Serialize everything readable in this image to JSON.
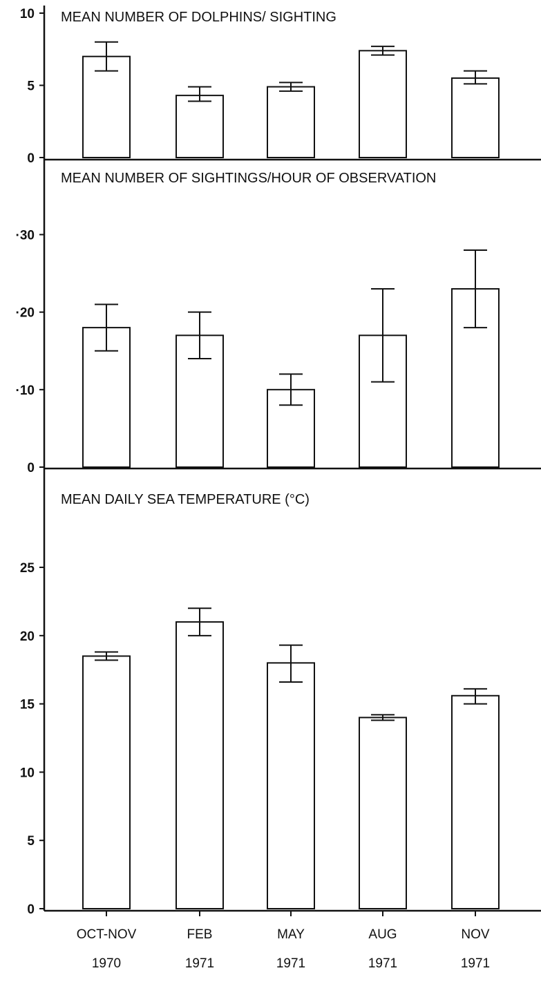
{
  "chart_data": [
    {
      "type": "bar",
      "title": "MEAN NUMBER OF DOLPHINS/ SIGHTING",
      "categories": [
        [
          "OCT-NOV",
          "1970"
        ],
        [
          "FEB",
          "1971"
        ],
        [
          "MAY",
          "1971"
        ],
        [
          "AUG",
          "1971"
        ],
        [
          "NOV",
          "1971"
        ]
      ],
      "values": [
        7.0,
        4.3,
        4.9,
        7.4,
        5.5
      ],
      "error_low": [
        6.0,
        3.9,
        4.6,
        7.1,
        5.1
      ],
      "error_high": [
        8.0,
        4.9,
        5.2,
        7.7,
        6.0
      ],
      "ylim": [
        0,
        10
      ],
      "yticks": [
        0,
        5,
        10
      ],
      "ytick_labels": [
        "0",
        "5",
        "10"
      ]
    },
    {
      "type": "bar",
      "title": "MEAN NUMBER OF SIGHTINGS/HOUR OF OBSERVATION",
      "categories": [
        [
          "OCT-NOV",
          "1970"
        ],
        [
          "FEB",
          "1971"
        ],
        [
          "MAY",
          "1971"
        ],
        [
          "AUG",
          "1971"
        ],
        [
          "NOV",
          "1971"
        ]
      ],
      "values": [
        0.18,
        0.17,
        0.1,
        0.17,
        0.23
      ],
      "error_low": [
        0.15,
        0.14,
        0.08,
        0.11,
        0.18
      ],
      "error_high": [
        0.21,
        0.2,
        0.12,
        0.23,
        0.28
      ],
      "ylim": [
        0,
        0.37
      ],
      "yticks": [
        0,
        0.1,
        0.2,
        0.3
      ],
      "ytick_labels": [
        "0",
        "·10",
        "·20",
        "·30"
      ]
    },
    {
      "type": "bar",
      "title": "MEAN DAILY SEA TEMPERATURE (°C)",
      "categories": [
        [
          "OCT-NOV",
          "1970"
        ],
        [
          "FEB",
          "1971"
        ],
        [
          "MAY",
          "1971"
        ],
        [
          "AUG",
          "1971"
        ],
        [
          "NOV",
          "1971"
        ]
      ],
      "values": [
        18.5,
        21.0,
        18.0,
        14.0,
        15.6
      ],
      "error_low": [
        18.2,
        20.0,
        16.6,
        13.8,
        15.0
      ],
      "error_high": [
        18.8,
        22.0,
        19.3,
        14.2,
        16.1
      ],
      "ylim": [
        0,
        29
      ],
      "yticks": [
        0,
        5,
        10,
        15,
        20,
        25
      ],
      "ytick_labels": [
        "0",
        "5",
        "10",
        "15",
        "20",
        "25"
      ]
    }
  ]
}
